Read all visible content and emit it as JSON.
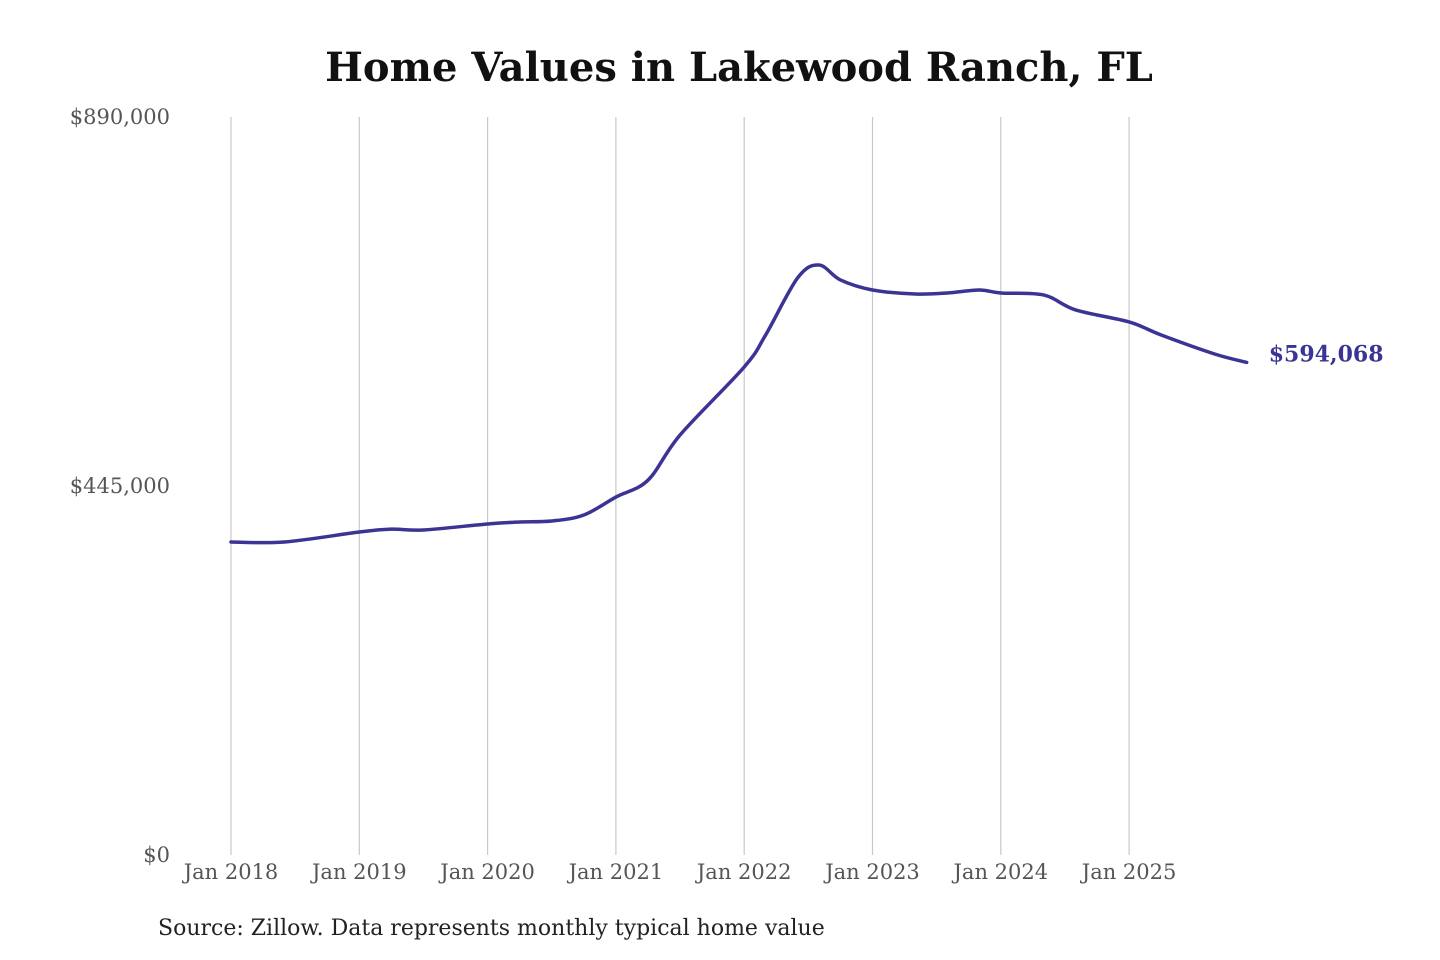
{
  "chart_data": {
    "type": "line",
    "title": "Home Values in Lakewood Ranch, FL",
    "xlabel": "",
    "ylabel": "",
    "ylim": [
      0,
      890000
    ],
    "y_ticks": [
      "$0",
      "$445,000",
      "$890,000"
    ],
    "y_tick_values": [
      0,
      445000,
      890000
    ],
    "x_ticks": [
      "Jan 2018",
      "Jan 2019",
      "Jan 2020",
      "Jan 2021",
      "Jan 2022",
      "Jan 2023",
      "Jan 2024",
      "Jan 2025"
    ],
    "grid": "vertical",
    "line_color": "#3b3494",
    "end_label": "$594,068",
    "series": [
      {
        "x": [
          "2018-01",
          "2018-06",
          "2019-01",
          "2019-04",
          "2019-07",
          "2020-01",
          "2020-04",
          "2020-07",
          "2020-10",
          "2021-01",
          "2021-04",
          "2021-07",
          "2022-01",
          "2022-03",
          "2022-06",
          "2022-08",
          "2022-10",
          "2023-01",
          "2023-05",
          "2023-08",
          "2023-11",
          "2024-01",
          "2024-05",
          "2024-08",
          "2025-01",
          "2025-04",
          "2025-09",
          "2025-12"
        ],
        "values": [
          377500,
          377500,
          389500,
          393000,
          392000,
          399200,
          401600,
          402800,
          410000,
          431700,
          452000,
          506500,
          588500,
          627000,
          696000,
          711500,
          693500,
          681400,
          676600,
          677800,
          681400,
          677800,
          675400,
          657300,
          642800,
          627100,
          604200,
          594068
        ]
      }
    ]
  },
  "source": "Source: Zillow. Data represents monthly typical home value"
}
